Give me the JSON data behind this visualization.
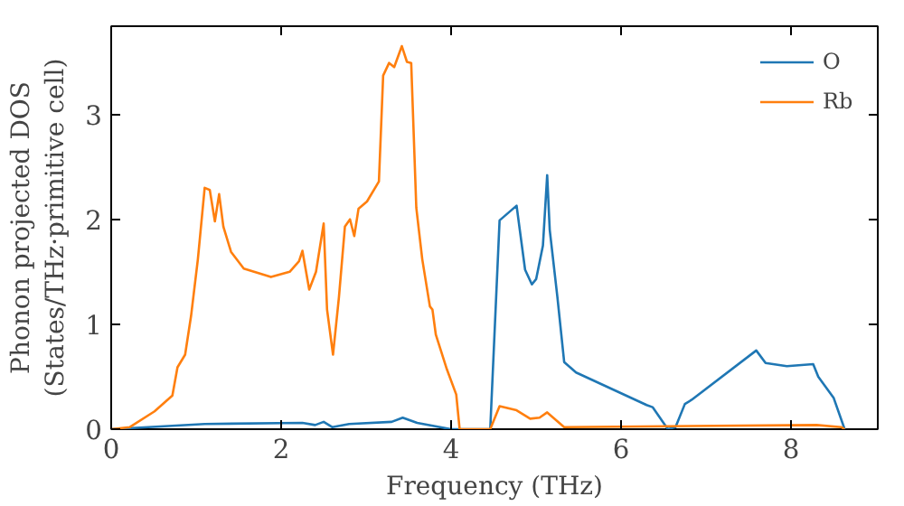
{
  "chart_data": {
    "type": "line",
    "xlabel": "Frequency (THz)",
    "ylabel": "Phonon projected DOS\n(States/THz·primitive cell)",
    "xlim": [
      0,
      9.02
    ],
    "ylim": [
      0,
      3.84
    ],
    "xticks": [
      0,
      2,
      4,
      6,
      8
    ],
    "yticks": [
      0,
      1,
      2,
      3
    ],
    "legend": "top right",
    "grid": false,
    "series": [
      {
        "name": "O",
        "color": "#1f77b4",
        "x": [
          0,
          1.1,
          2.25,
          2.4,
          2.5,
          2.6,
          2.8,
          3.3,
          3.43,
          3.6,
          4.0,
          4.46,
          4.57,
          4.77,
          4.87,
          4.95,
          5.0,
          5.08,
          5.13,
          5.16,
          5.25,
          5.33,
          5.47,
          6.3,
          6.37,
          6.55,
          6.64,
          6.75,
          6.83,
          7.59,
          7.7,
          7.95,
          8.26,
          8.32,
          8.5,
          8.63
        ],
        "values": [
          0,
          0.05,
          0.06,
          0.04,
          0.07,
          0.02,
          0.05,
          0.07,
          0.11,
          0.06,
          0,
          0,
          1.99,
          2.13,
          1.52,
          1.38,
          1.43,
          1.75,
          2.42,
          1.9,
          1.26,
          0.64,
          0.54,
          0.23,
          0.21,
          0,
          0.02,
          0.24,
          0.28,
          0.75,
          0.63,
          0.6,
          0.62,
          0.5,
          0.3,
          0
        ]
      },
      {
        "name": "Rb",
        "color": "#ff7f0e",
        "x": [
          0,
          0.22,
          0.51,
          0.72,
          0.78,
          0.87,
          0.94,
          1.02,
          1.1,
          1.16,
          1.22,
          1.27,
          1.32,
          1.41,
          1.56,
          1.88,
          2.1,
          2.21,
          2.25,
          2.33,
          2.41,
          2.5,
          2.54,
          2.61,
          2.68,
          2.75,
          2.81,
          2.86,
          2.91,
          3.01,
          3.15,
          3.2,
          3.27,
          3.33,
          3.42,
          3.48,
          3.53,
          3.59,
          3.66,
          3.75,
          3.78,
          3.82,
          3.95,
          4.06,
          4.1,
          4.46,
          4.57,
          4.77,
          4.93,
          5.04,
          5.13,
          5.33,
          8.3,
          8.59,
          8.63
        ],
        "values": [
          0,
          0.02,
          0.17,
          0.32,
          0.59,
          0.71,
          1.08,
          1.62,
          2.3,
          2.28,
          1.98,
          2.24,
          1.93,
          1.69,
          1.53,
          1.45,
          1.5,
          1.6,
          1.7,
          1.33,
          1.5,
          1.96,
          1.14,
          0.71,
          1.26,
          1.93,
          2.0,
          1.84,
          2.1,
          2.17,
          2.36,
          3.37,
          3.49,
          3.45,
          3.65,
          3.5,
          3.49,
          2.11,
          1.62,
          1.17,
          1.14,
          0.9,
          0.57,
          0.33,
          0,
          0,
          0.22,
          0.18,
          0.1,
          0.11,
          0.16,
          0.02,
          0.04,
          0.02,
          0
        ]
      }
    ]
  }
}
